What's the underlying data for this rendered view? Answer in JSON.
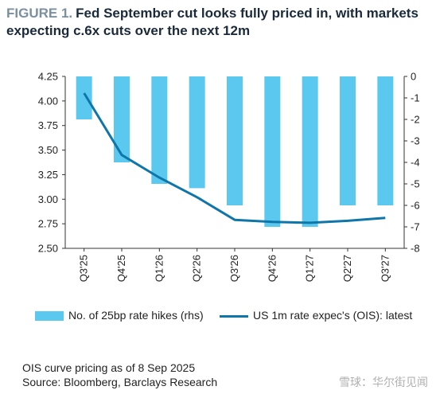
{
  "title": {
    "lead": "FIGURE 1.",
    "text": "Fed September cut looks fully priced in, with markets expecting c.6x cuts over the next 12m"
  },
  "chart_data": {
    "type": "bar+line",
    "categories": [
      "Q3'25",
      "Q4'25",
      "Q1'26",
      "Q2'26",
      "Q3'26",
      "Q4'26",
      "Q1'27",
      "Q2'27",
      "Q3'27"
    ],
    "series": [
      {
        "name": "No. of 25bp rate hikes (rhs)",
        "type": "bar",
        "axis": "right",
        "color": "#5bc8f0",
        "values": [
          -2.0,
          -4.0,
          -5.0,
          -5.2,
          -6.0,
          -7.0,
          -7.0,
          -6.0,
          -6.0
        ]
      },
      {
        "name": "US 1m rate expec's (OIS): latest",
        "type": "line",
        "axis": "left",
        "color": "#0e76a8",
        "values": [
          4.08,
          3.45,
          3.22,
          3.02,
          2.79,
          2.77,
          2.76,
          2.78,
          2.81
        ]
      }
    ],
    "y_left": {
      "ylim": [
        2.5,
        4.25
      ],
      "ticks": [
        "2.50",
        "2.75",
        "3.00",
        "3.25",
        "3.50",
        "3.75",
        "4.00",
        "4.25"
      ]
    },
    "y_right": {
      "ylim": [
        -8,
        0
      ],
      "ticks": [
        "-8",
        "-7",
        "-6",
        "-5",
        "-4",
        "-3",
        "-2",
        "-1",
        "0"
      ]
    },
    "legend_position": "bottom",
    "grid": false
  },
  "footnotes": [
    "OIS curve pricing as of 8 Sep 2025",
    "Source: Bloomberg, Barclays Research"
  ],
  "watermark": "雪球：华尔街见闻"
}
